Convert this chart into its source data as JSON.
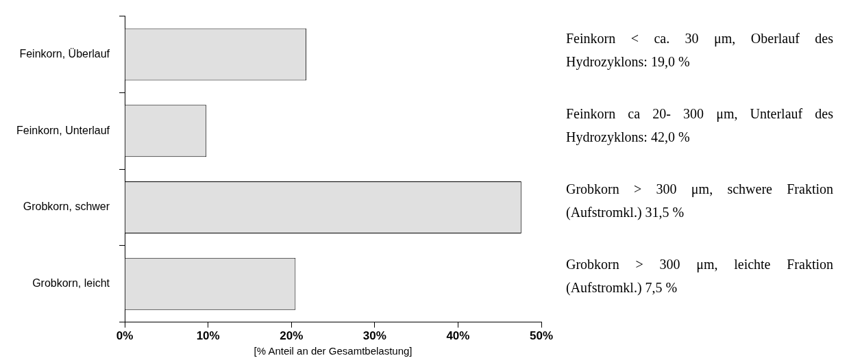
{
  "chart_data": {
    "type": "bar",
    "orientation": "horizontal",
    "categories": [
      "Feinkorn, Überlauf",
      "Feinkorn, Unterlauf",
      "Grobkorn, schwer",
      "Grobkorn, leicht"
    ],
    "values": [
      21.8,
      9.8,
      47.6,
      20.5
    ],
    "color": "#e0e0e0",
    "xlabel": "[% Anteil an der Gesamtbelastung]",
    "xlim": [
      0,
      50
    ],
    "xticks": [
      {
        "value": 0,
        "label": "0%"
      },
      {
        "value": 10,
        "label": "10%"
      },
      {
        "value": 20,
        "label": "20%"
      },
      {
        "value": 30,
        "label": "30%"
      },
      {
        "value": 40,
        "label": "40%"
      },
      {
        "value": 50,
        "label": "50%"
      }
    ],
    "grid": false,
    "legend": false,
    "annotations": [
      "Feinkorn < ca. 30 μm, Oberlauf des Hydrozyklons: 19,0 %",
      "Feinkorn ca 20- 300 μm, Unterlauf des Hydrozyklons:  42,0 %",
      "Grobkorn > 300 μm, schwere Fraktion  (Aufstromkl.) 31,5 %",
      "Grobkorn > 300 μm, leichte Fraktion (Aufstromkl.) 7,5 %"
    ]
  }
}
